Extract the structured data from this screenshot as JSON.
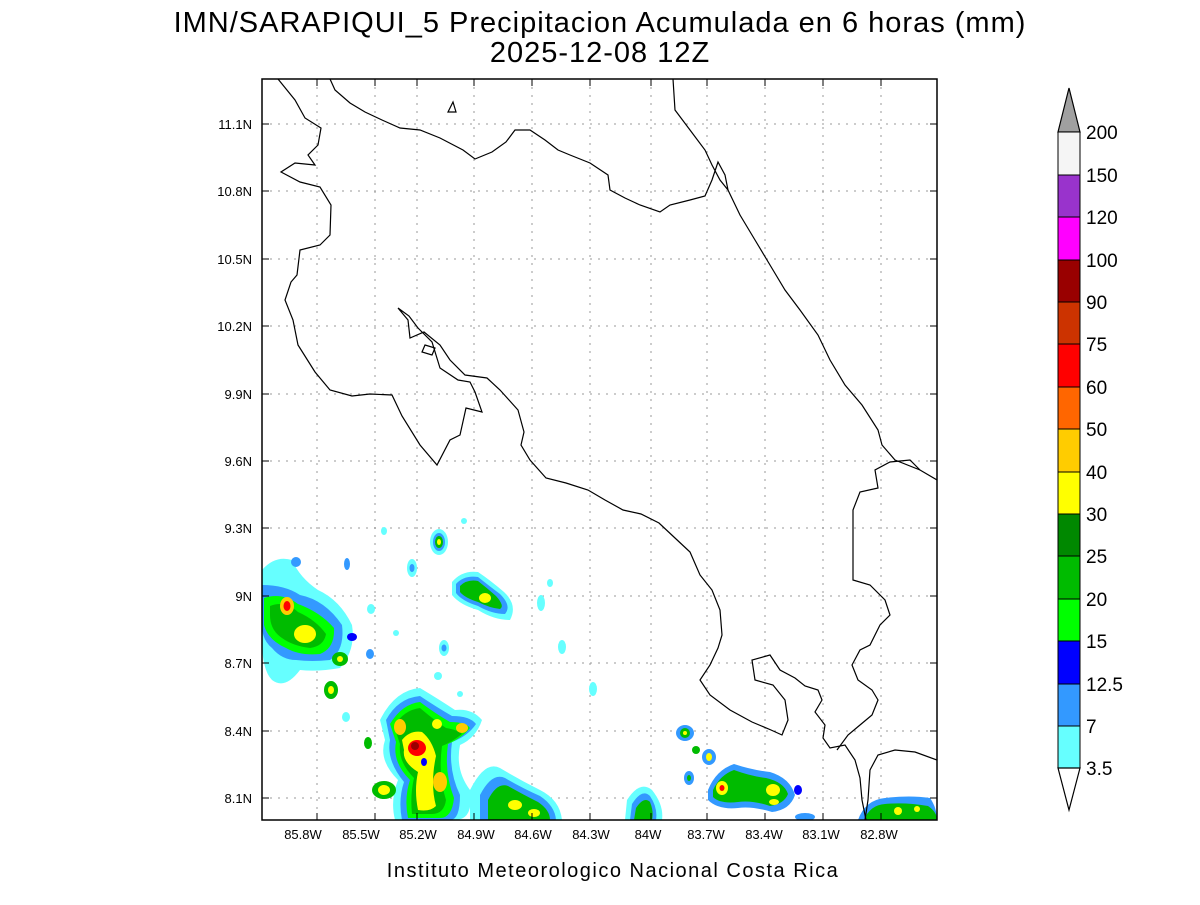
{
  "title": {
    "line1": "IMN/SARAPIQUI_5 Precipitacion Acumulada en 6 horas (mm)",
    "line2": "2025-12-08 12Z"
  },
  "credit": "Instituto Meteorologico Nacional Costa Rica",
  "axes": {
    "lon_ticks": [
      "85.8W",
      "85.5W",
      "85.2W",
      "84.9W",
      "84.6W",
      "84.3W",
      "84W",
      "83.7W",
      "83.4W",
      "83.1W",
      "82.8W"
    ],
    "lat_ticks": [
      "11.1N",
      "10.8N",
      "10.5N",
      "10.2N",
      "9.9N",
      "9.6N",
      "9.3N",
      "9N",
      "8.7N",
      "8.4N",
      "8.1N"
    ]
  },
  "colorbar": {
    "labels": [
      "200",
      "150",
      "120",
      "100",
      "90",
      "75",
      "60",
      "50",
      "40",
      "30",
      "25",
      "20",
      "15",
      "12.5",
      "7",
      "3.5"
    ],
    "colors": {
      "above_200": "#a0a0a0",
      "150_200": "#f5f5f5",
      "120_150": "#9933cc",
      "100_120": "#ff00ff",
      "90_100": "#990000",
      "75_90": "#cc3300",
      "60_75": "#ff0000",
      "50_60": "#ff6600",
      "40_50": "#ffcc00",
      "30_40": "#ffff00",
      "25_30": "#008800",
      "20_25": "#00bb00",
      "15_20": "#00ff00",
      "12.5_15": "#0000ff",
      "7_12.5": "#3399ff",
      "3.5_7": "#66ffff"
    }
  }
}
